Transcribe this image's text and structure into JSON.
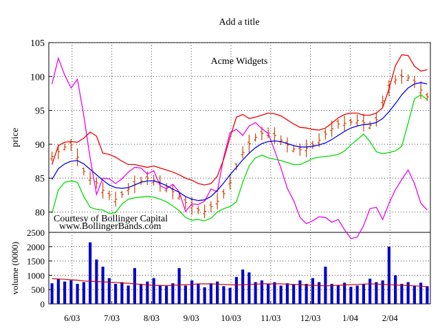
{
  "chart_data": [
    {
      "type": "ohlc",
      "title": "Add a title",
      "annotation_title": "Acme Widgets",
      "credit_lines": [
        "Courtesy of Bollinger Capital",
        "www.BollingerBands.com"
      ],
      "ylabel": "price",
      "ylim": [
        77,
        105
      ],
      "yticks": [
        80,
        85,
        90,
        95,
        100,
        105
      ],
      "grid": "dotted",
      "price_close": [
        88.2,
        88.9,
        89.6,
        89.9,
        88.1,
        86.0,
        85.0,
        84.3,
        83.2,
        82.5,
        81.9,
        82.6,
        83.4,
        84.1,
        84.6,
        85.0,
        84.7,
        84.2,
        83.6,
        83.0,
        82.3,
        81.4,
        80.9,
        80.3,
        80.1,
        80.8,
        81.6,
        82.7,
        84.4,
        86.7,
        88.8,
        90.1,
        91.0,
        91.6,
        91.7,
        91.3,
        90.6,
        89.9,
        89.3,
        89.2,
        89.4,
        89.9,
        90.6,
        91.5,
        92.3,
        93.0,
        93.1,
        93.3,
        93.5,
        93.2,
        92.8,
        93.6,
        96.4,
        98.3,
        99.5,
        100.0,
        99.8,
        99.2,
        98.0,
        97.0
      ],
      "price_open_offset": [
        -0.35,
        0.25,
        -0.4,
        0.3,
        -0.25,
        0.4,
        -0.3,
        0.2
      ],
      "price_range_half": [
        0.7,
        1.1,
        0.5,
        0.9,
        1.3,
        0.6,
        1.0,
        0.8,
        1.2
      ],
      "bb_middle": [
        84.8,
        86.4,
        87.1,
        87.5,
        87.6,
        87.1,
        86.3,
        85.5,
        84.7,
        84.0,
        83.6,
        83.5,
        83.6,
        84.0,
        84.4,
        84.6,
        84.6,
        84.3,
        83.9,
        83.4,
        82.9,
        82.3,
        81.9,
        81.7,
        81.8,
        82.3,
        83.2,
        84.3,
        85.5,
        86.6,
        87.7,
        88.7,
        89.5,
        90.1,
        90.4,
        90.5,
        90.4,
        90.1,
        89.8,
        89.6,
        89.6,
        89.7,
        89.9,
        90.2,
        90.7,
        91.3,
        91.9,
        92.4,
        92.7,
        92.9,
        93.0,
        93.2,
        93.8,
        94.8,
        96.0,
        97.3,
        98.3,
        98.9,
        99.1,
        98.9
      ],
      "bb_upper": [
        87.0,
        89.8,
        90.3,
        90.4,
        90.3,
        90.9,
        91.8,
        91.2,
        88.7,
        88.5,
        88.1,
        87.5,
        87.0,
        87.0,
        86.8,
        86.6,
        86.8,
        86.5,
        86.2,
        85.9,
        85.5,
        85.0,
        84.7,
        84.2,
        84.0,
        84.2,
        85.3,
        87.8,
        91.0,
        94.0,
        94.4,
        93.8,
        94.0,
        94.3,
        94.6,
        94.5,
        94.2,
        93.6,
        93.0,
        92.5,
        92.4,
        92.2,
        92.1,
        92.4,
        93.1,
        93.9,
        94.4,
        94.6,
        94.6,
        94.3,
        94.3,
        94.6,
        95.4,
        98.2,
        101.6,
        103.2,
        103.1,
        101.5,
        100.8,
        101.0
      ],
      "bb_lower": [
        79.8,
        83.3,
        84.4,
        84.6,
        84.4,
        82.3,
        80.7,
        80.4,
        80.3,
        79.8,
        79.9,
        81.2,
        81.9,
        82.1,
        82.2,
        82.3,
        82.2,
        81.9,
        81.5,
        80.9,
        80.2,
        79.2,
        78.8,
        78.9,
        78.7,
        79.1,
        80.0,
        80.5,
        80.8,
        81.5,
        84.4,
        86.8,
        88.0,
        88.4,
        88.0,
        87.8,
        87.6,
        87.3,
        87.0,
        87.0,
        87.4,
        87.9,
        88.1,
        88.2,
        88.3,
        88.5,
        89.0,
        89.9,
        90.7,
        91.5,
        90.4,
        88.9,
        88.6,
        88.8,
        89.0,
        89.7,
        93.1,
        96.7,
        97.3,
        96.6
      ],
      "oscillator": [
        98.9,
        102.7,
        100.2,
        98.3,
        99.6,
        94.2,
        88.0,
        82.6,
        85.0,
        84.9,
        84.2,
        84.9,
        85.9,
        86.6,
        86.5,
        85.6,
        86.1,
        83.9,
        83.4,
        84.1,
        83.0,
        80.1,
        81.2,
        81.1,
        81.6,
        83.4,
        83.0,
        88.1,
        91.7,
        92.2,
        91.3,
        92.7,
        93.2,
        92.3,
        91.6,
        89.1,
        86.5,
        83.5,
        81.7,
        79.2,
        78.3,
        78.7,
        79.3,
        79.2,
        78.5,
        78.9,
        77.4,
        76.1,
        76.3,
        78.0,
        80.5,
        80.7,
        78.9,
        81.3,
        83.3,
        84.8,
        86.2,
        84.2,
        81.3,
        80.3
      ]
    },
    {
      "type": "bar",
      "ylabel": "volume (0000)",
      "ylim": [
        0,
        2500
      ],
      "yticks": [
        0,
        500,
        1000,
        1500,
        2000,
        2500
      ],
      "x_tick_labels": [
        "6/03",
        "7/03",
        "8/03",
        "9/03",
        "10/03",
        "11/03",
        "12/03",
        "1/04",
        "2/04"
      ],
      "bar_color": "#0000cc",
      "volume": [
        720,
        880,
        780,
        820,
        700,
        760,
        2150,
        1550,
        1300,
        900,
        700,
        760,
        640,
        1250,
        700,
        780,
        900,
        660,
        620,
        720,
        1250,
        640,
        820,
        700,
        580,
        720,
        780,
        620,
        560,
        940,
        1200,
        1100,
        760,
        820,
        700,
        760,
        640,
        720,
        680,
        820,
        700,
        900,
        760,
        1300,
        700,
        660,
        740,
        600,
        640,
        700,
        880,
        760,
        820,
        2000,
        1000,
        700,
        760,
        640,
        740,
        620
      ],
      "volume_ma": [
        880,
        870,
        860,
        840,
        830,
        800,
        790,
        780,
        770,
        760,
        750,
        730,
        720,
        700,
        680,
        660,
        650,
        640,
        640,
        650,
        660,
        670,
        680,
        700,
        700,
        700,
        690,
        680,
        670,
        660,
        670,
        680,
        690,
        700,
        700,
        700,
        700,
        690,
        680,
        670,
        660,
        650,
        640,
        630,
        640,
        650,
        660,
        670,
        680,
        690,
        700,
        690,
        680,
        670,
        660,
        650,
        640,
        630,
        620,
        600
      ],
      "volume_ma_color": "#cc0000"
    }
  ],
  "colors": {
    "price_bars": "#cc4400",
    "bb_middle": "#0000ee",
    "bb_upper": "#ee0000",
    "bb_lower": "#00dd00",
    "oscillator": "#ee00ee",
    "frame": "#000000",
    "grid": "#444444"
  }
}
